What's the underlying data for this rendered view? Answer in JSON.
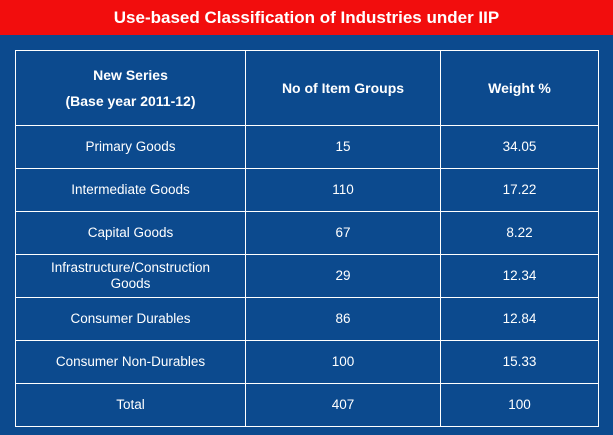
{
  "header": {
    "title": "Use-based Classification of Industries under IIP"
  },
  "table": {
    "columns": [
      [
        "New Series",
        "(Base year 2011-12)"
      ],
      [
        "No of Item Groups"
      ],
      [
        "Weight %"
      ]
    ],
    "rows": [
      [
        "Primary Goods",
        15,
        34.05
      ],
      [
        "Intermediate Goods",
        110,
        17.22
      ],
      [
        "Capital Goods",
        67,
        8.22
      ],
      [
        "Infrastructure/Construction Goods",
        29,
        12.34
      ],
      [
        "Consumer Durables",
        86,
        12.84
      ],
      [
        "Consumer Non-Durables",
        100,
        15.33
      ],
      [
        "Total",
        407,
        100
      ]
    ]
  }
}
